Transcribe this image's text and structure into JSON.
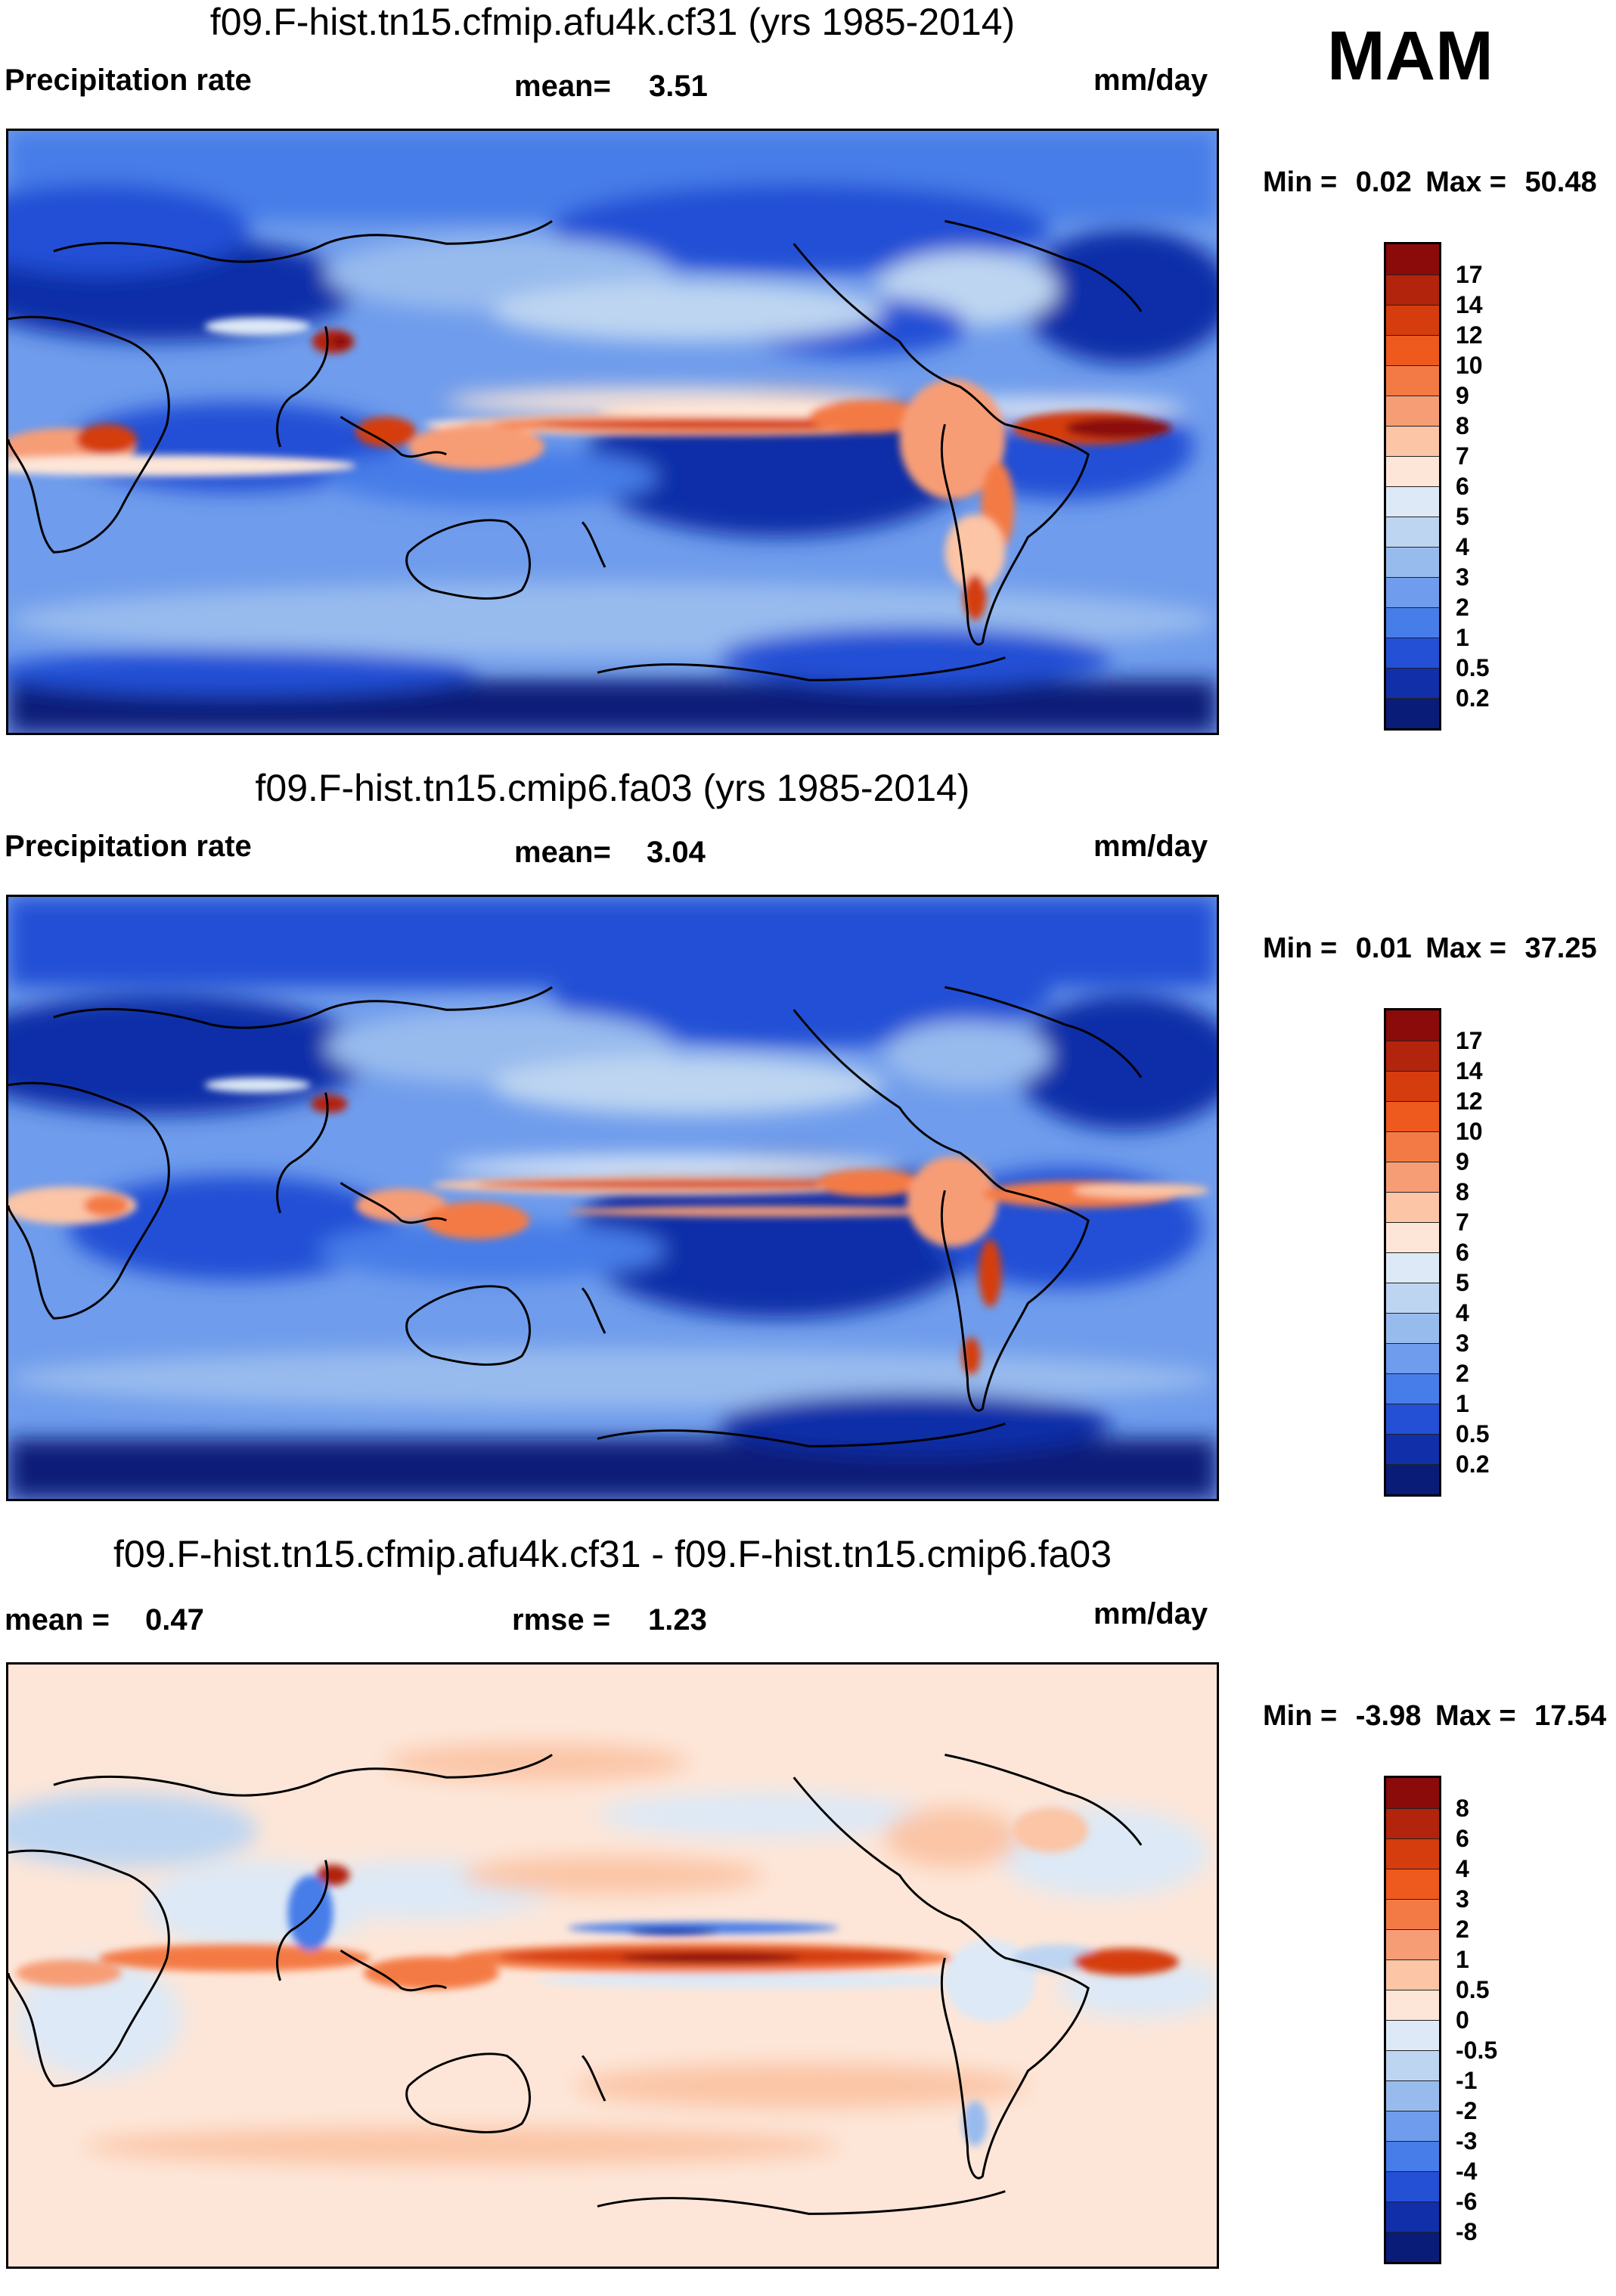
{
  "season": "MAM",
  "units": "mm/day",
  "panels": [
    {
      "title": "f09.F-hist.tn15.cfmip.afu4k.cf31 (yrs 1985-2014)",
      "left_label": "Precipitation rate",
      "stat_label": "mean=",
      "stat_value": "3.51",
      "units": "mm/day",
      "min_label": "Min =",
      "min_value": "0.02",
      "max_label": "Max =",
      "max_value": "50.48"
    },
    {
      "title": "f09.F-hist.tn15.cmip6.fa03 (yrs 1985-2014)",
      "left_label": "Precipitation rate",
      "stat_label": "mean=",
      "stat_value": "3.04",
      "units": "mm/day",
      "min_label": "Min =",
      "min_value": "0.01",
      "max_label": "Max =",
      "max_value": "37.25"
    },
    {
      "title": "f09.F-hist.tn15.cfmip.afu4k.cf31 - f09.F-hist.tn15.cmip6.fa03",
      "left_label_a": "mean =",
      "left_value_a": "0.47",
      "stat_label": "rmse =",
      "stat_value": "1.23",
      "units": "mm/day",
      "min_label": "Min =",
      "min_value": "-3.98",
      "max_label": "Max =",
      "max_value": "17.54"
    }
  ],
  "colorbar_abs": {
    "labels": [
      "17",
      "14",
      "12",
      "10",
      "9",
      "8",
      "7",
      "6",
      "5",
      "4",
      "3",
      "2",
      "1",
      "0.5",
      "0.2"
    ],
    "colors": [
      "#8b0a0a",
      "#b3240c",
      "#d53d0e",
      "#ee5a1e",
      "#f47a45",
      "#f79d76",
      "#fbc5a6",
      "#fde6d8",
      "#dde9f6",
      "#bdd5f1",
      "#98bbee",
      "#6f9cec",
      "#467de8",
      "#2350d5",
      "#102fa8",
      "#091c78"
    ]
  },
  "colorbar_diff": {
    "labels": [
      "8",
      "6",
      "4",
      "3",
      "2",
      "1",
      "0.5",
      "0",
      "-0.5",
      "-1",
      "-2",
      "-3",
      "-4",
      "-6",
      "-8"
    ],
    "colors": [
      "#8b0a0a",
      "#b3240c",
      "#d53d0e",
      "#ee5a1e",
      "#f47a45",
      "#f79d76",
      "#fbc5a6",
      "#fde6d8",
      "#dde9f6",
      "#bdd5f1",
      "#98bbee",
      "#6f9cec",
      "#467de8",
      "#2350d5",
      "#102fa8",
      "#091c78"
    ]
  }
}
